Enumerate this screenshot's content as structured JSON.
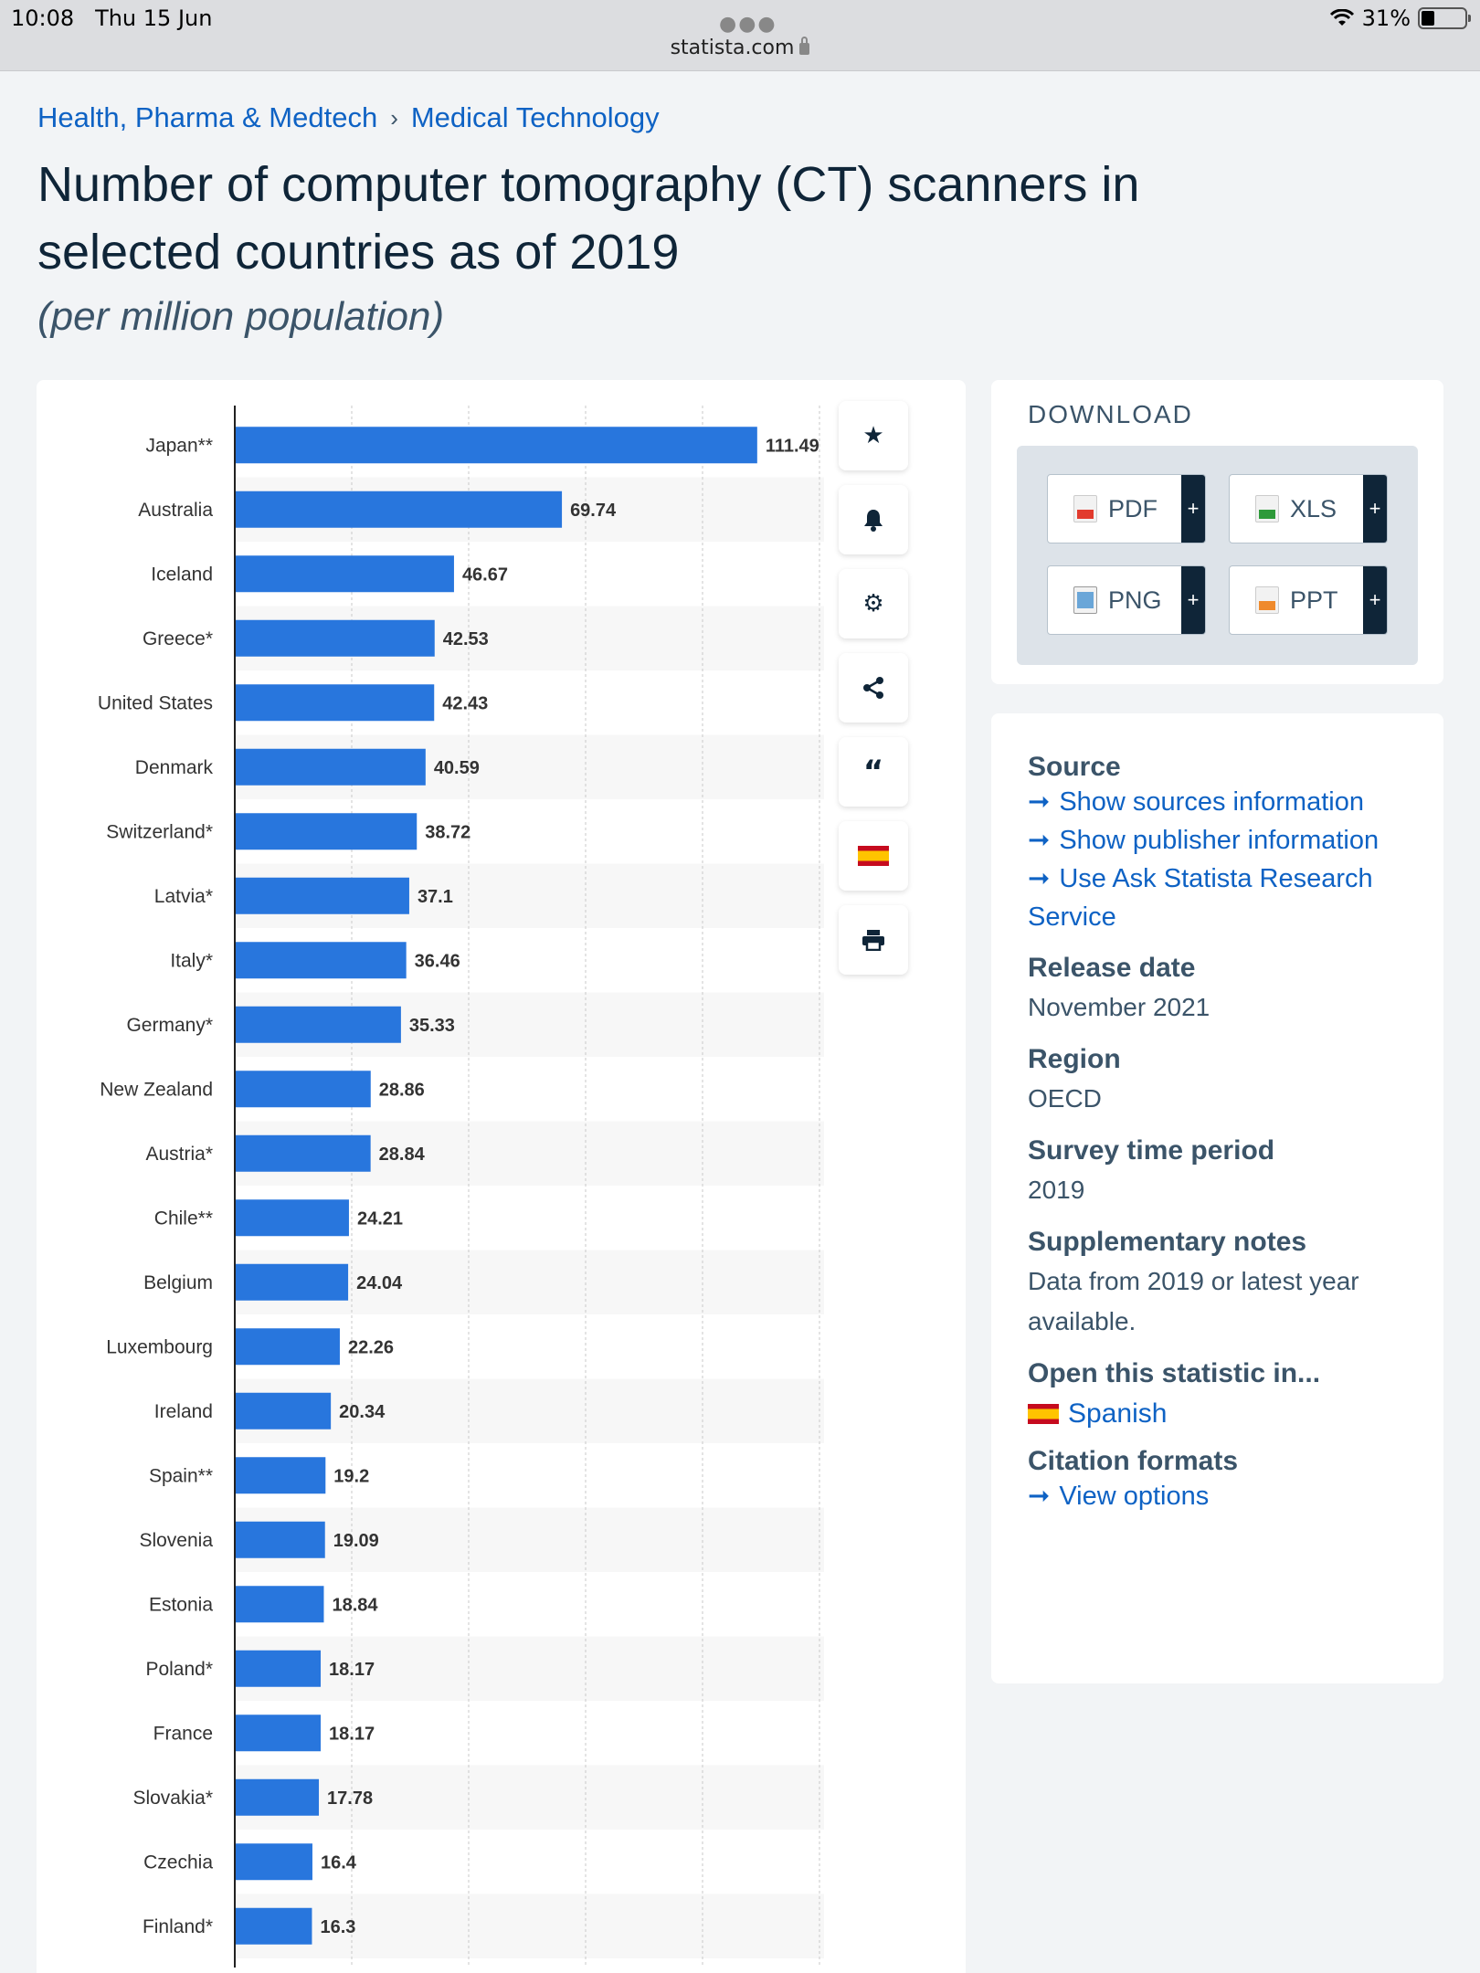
{
  "status": {
    "time": "10:08",
    "date": "Thu 15 Jun",
    "url": "statista.com",
    "battery": "31%",
    "battery_level": 0.31
  },
  "breadcrumb": [
    "Health, Pharma & Medtech",
    "Medical Technology"
  ],
  "breadcrumb_sep": "›",
  "title": "Number of computer tomography (CT) scanners in selected countries as of 2019",
  "subtitle": "(per million population)",
  "tools": [
    "star-icon",
    "bell-icon",
    "gear-icon",
    "share-icon",
    "quote-icon",
    "spain-flag-icon",
    "print-icon"
  ],
  "download": {
    "header": "DOWNLOAD",
    "buttons": [
      "PDF",
      "XLS",
      "PNG",
      "PPT"
    ],
    "plus": "+"
  },
  "meta": {
    "source_h": "Source",
    "source_links": [
      "Show sources information",
      "Show publisher information",
      "Use Ask Statista Research Service"
    ],
    "release_h": "Release date",
    "release_v": "November 2021",
    "region_h": "Region",
    "region_v": "OECD",
    "period_h": "Survey time period",
    "period_v": "2019",
    "notes_h": "Supplementary notes",
    "notes_v": "Data from 2019 or latest year available.",
    "open_h": "Open this statistic in...",
    "open_v": "Spanish",
    "citation_h": "Citation formats",
    "citation_v": "View options"
  },
  "colors": {
    "bar": "#2876dd",
    "link": "#0e62c4",
    "title": "#0f2538"
  },
  "chart_data": {
    "type": "bar",
    "orientation": "horizontal",
    "categories": [
      "Japan**",
      "Australia",
      "Iceland",
      "Greece*",
      "United States",
      "Denmark",
      "Switzerland*",
      "Latvia*",
      "Italy*",
      "Germany*",
      "New Zealand",
      "Austria*",
      "Chile**",
      "Belgium",
      "Luxembourg",
      "Ireland",
      "Spain**",
      "Slovenia",
      "Estonia",
      "Poland*",
      "France",
      "Slovakia*",
      "Czechia",
      "Finland*"
    ],
    "values": [
      111.49,
      69.74,
      46.67,
      42.53,
      42.43,
      40.59,
      38.72,
      37.1,
      36.46,
      35.33,
      28.86,
      28.84,
      24.21,
      24.04,
      22.26,
      20.34,
      19.2,
      19.09,
      18.84,
      18.17,
      18.17,
      17.78,
      16.4,
      16.3
    ],
    "xlim": [
      0,
      125
    ],
    "grid": true
  }
}
